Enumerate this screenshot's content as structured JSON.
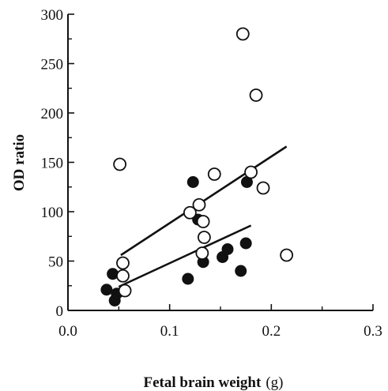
{
  "chart_data": {
    "type": "scatter",
    "title": "",
    "xlabel": "Fetal brain weight",
    "xlabel_unit": "(g)",
    "ylabel": "OD ratio",
    "xlim": [
      0.0,
      0.3
    ],
    "ylim": [
      0,
      300
    ],
    "x_ticks": [
      "0.0",
      "0.1",
      "0.2",
      "0.3"
    ],
    "y_ticks": [
      "0",
      "50",
      "100",
      "150",
      "200",
      "250",
      "300"
    ],
    "grid": false,
    "legend": "none",
    "series": [
      {
        "marker": "filled-circle",
        "points": [
          {
            "x": 0.038,
            "y": 21
          },
          {
            "x": 0.044,
            "y": 37
          },
          {
            "x": 0.046,
            "y": 10
          },
          {
            "x": 0.048,
            "y": 17
          },
          {
            "x": 0.118,
            "y": 32
          },
          {
            "x": 0.123,
            "y": 130
          },
          {
            "x": 0.128,
            "y": 92
          },
          {
            "x": 0.133,
            "y": 49
          },
          {
            "x": 0.152,
            "y": 54
          },
          {
            "x": 0.157,
            "y": 62
          },
          {
            "x": 0.17,
            "y": 40
          },
          {
            "x": 0.175,
            "y": 68
          },
          {
            "x": 0.176,
            "y": 130
          }
        ],
        "fit": {
          "x": [
            0.05,
            0.18
          ],
          "y": [
            24,
            86
          ]
        }
      },
      {
        "marker": "open-circle",
        "points": [
          {
            "x": 0.051,
            "y": 148
          },
          {
            "x": 0.054,
            "y": 48
          },
          {
            "x": 0.054,
            "y": 35
          },
          {
            "x": 0.056,
            "y": 20
          },
          {
            "x": 0.12,
            "y": 99
          },
          {
            "x": 0.129,
            "y": 107
          },
          {
            "x": 0.133,
            "y": 90
          },
          {
            "x": 0.134,
            "y": 74
          },
          {
            "x": 0.132,
            "y": 58
          },
          {
            "x": 0.144,
            "y": 138
          },
          {
            "x": 0.172,
            "y": 280
          },
          {
            "x": 0.18,
            "y": 140
          },
          {
            "x": 0.185,
            "y": 218
          },
          {
            "x": 0.192,
            "y": 124
          },
          {
            "x": 0.215,
            "y": 56
          }
        ],
        "fit": {
          "x": [
            0.052,
            0.215
          ],
          "y": [
            56,
            166
          ]
        }
      }
    ]
  }
}
